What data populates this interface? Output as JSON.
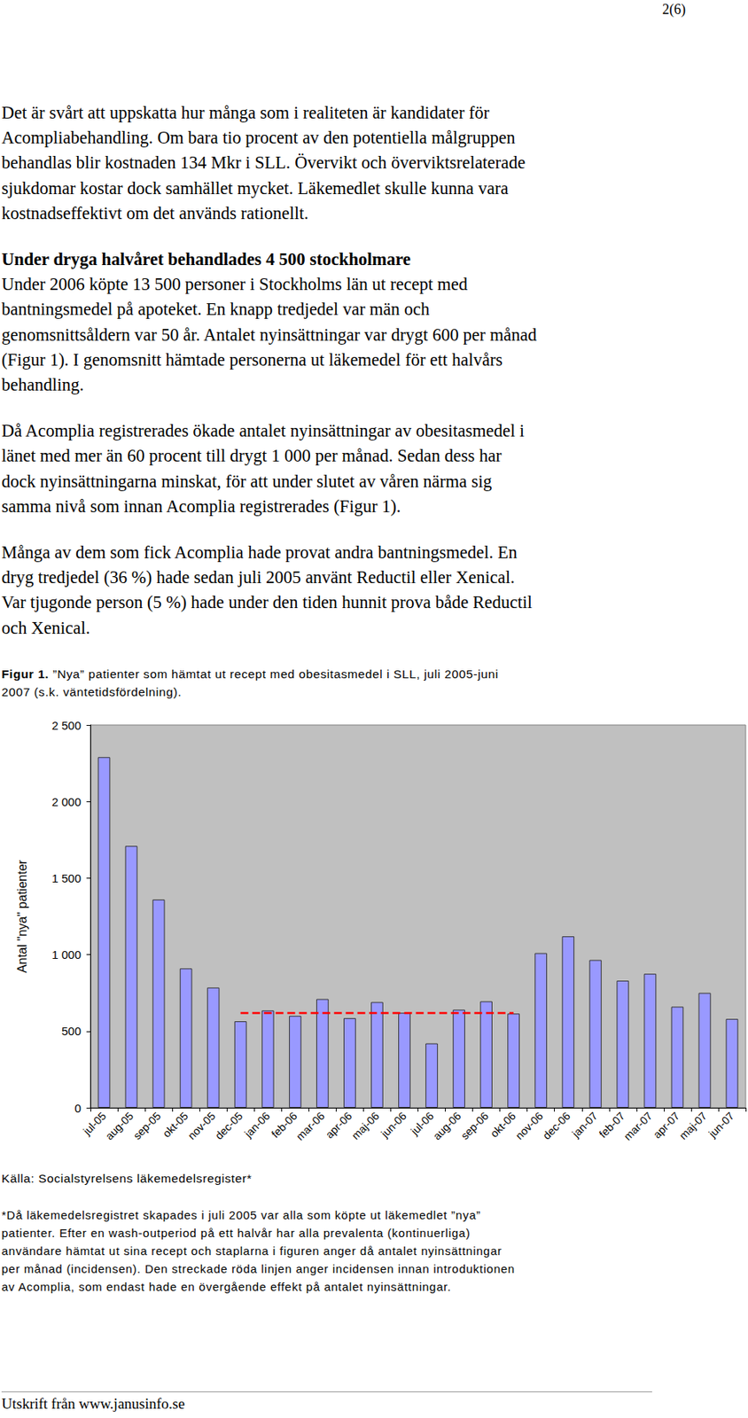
{
  "header": {
    "page_number": "2(6)"
  },
  "body": [
    {
      "lines": [
        "Det är svårt att uppskatta hur många som i realiteten är kandidater för",
        "Acompliabehandling. Om bara tio procent av den potentiella målgruppen",
        "behandlas blir kostnaden 134 Mkr i SLL. Övervikt och överviktsrelaterade",
        "sjukdomar kostar dock samhället mycket. Läkemedlet skulle kunna vara",
        "kostnadseffektivt om det används rationellt."
      ]
    },
    {
      "heading": "Under dryga halvåret behandlades 4 500 stockholmare",
      "lines": [
        "Under 2006 köpte 13 500 personer i Stockholms län ut recept med",
        "bantningsmedel på apoteket. En knapp tredjedel var män och",
        "genomsnittsåldern var 50 år. Antalet nyinsättningar var drygt 600 per månad",
        "(Figur 1). I genomsnitt hämtade personerna ut läkemedel för ett halvårs",
        "behandling."
      ]
    },
    {
      "lines": [
        "Då Acomplia registrerades ökade antalet nyinsättningar av obesitasmedel i",
        "länet med mer än 60 procent till drygt 1 000 per månad. Sedan dess har",
        "dock nyinsättningarna minskat, för att under slutet av våren närma sig",
        "samma nivå som innan Acomplia registrerades (Figur 1)."
      ]
    },
    {
      "lines": [
        "Många av dem som fick Acomplia hade provat andra bantningsmedel. En",
        "dryg tredjedel (36 %) hade sedan juli 2005 använt Reductil eller Xenical.",
        "Var tjugonde person (5 %) hade under den tiden hunnit prova både Reductil",
        "och Xenical."
      ]
    }
  ],
  "figure": {
    "label": "Figur 1.",
    "lines": [
      "”Nya” patienter som hämtat ut recept med obesitasmedel i SLL, juli 2005-juni",
      "2007 (s.k. väntetidsfördelning)."
    ]
  },
  "chart_data": {
    "type": "bar",
    "y_label": "Antal \"nya\" patienter",
    "categories": [
      "jul-05",
      "aug-05",
      "sep-05",
      "okt-05",
      "nov-05",
      "dec-05",
      "jan-06",
      "feb-06",
      "mar-06",
      "apr-06",
      "maj-06",
      "jun-06",
      "jul-06",
      "aug-06",
      "sep-06",
      "okt-06",
      "nov-06",
      "dec-06",
      "jan-07",
      "feb-07",
      "mar-07",
      "apr-07",
      "maj-07",
      "jun-07"
    ],
    "values": [
      2290,
      1710,
      1360,
      910,
      785,
      565,
      635,
      600,
      710,
      585,
      690,
      620,
      420,
      640,
      695,
      615,
      1010,
      1120,
      965,
      830,
      875,
      660,
      750,
      580
    ],
    "color": "#9999ff",
    "ylim": [
      0,
      2500
    ],
    "yticks": [
      0,
      500,
      {
        "value": 1000,
        "label": "1 000"
      },
      {
        "value": 1500,
        "label": "1 500"
      },
      {
        "value": 2000,
        "label": "2 000"
      },
      {
        "value": 2500,
        "label": "2 500"
      }
    ],
    "grid": false,
    "reference_line": {
      "value": 620,
      "from": "dec-05",
      "to": "okt-06",
      "color": "#ff0000",
      "line_style": "dashed"
    }
  },
  "source": "Källa: Socialstyrelsens läkemedelsregister*",
  "footnote": [
    "*Då läkemedelsregistret skapades i juli 2005 var alla som köpte ut läkemedlet ”nya”",
    "patienter. Efter en wash-outperiod på ett halvår har alla prevalenta (kontinuerliga)",
    "användare hämtat ut sina recept och staplarna i figuren anger då antalet nyinsättningar",
    "per månad (incidensen). Den streckade röda linjen anger incidensen innan introduktionen",
    "av Acomplia, som endast hade en övergående effekt på antalet nyinsättningar."
  ],
  "footer": "Utskrift från www.janusinfo.se"
}
